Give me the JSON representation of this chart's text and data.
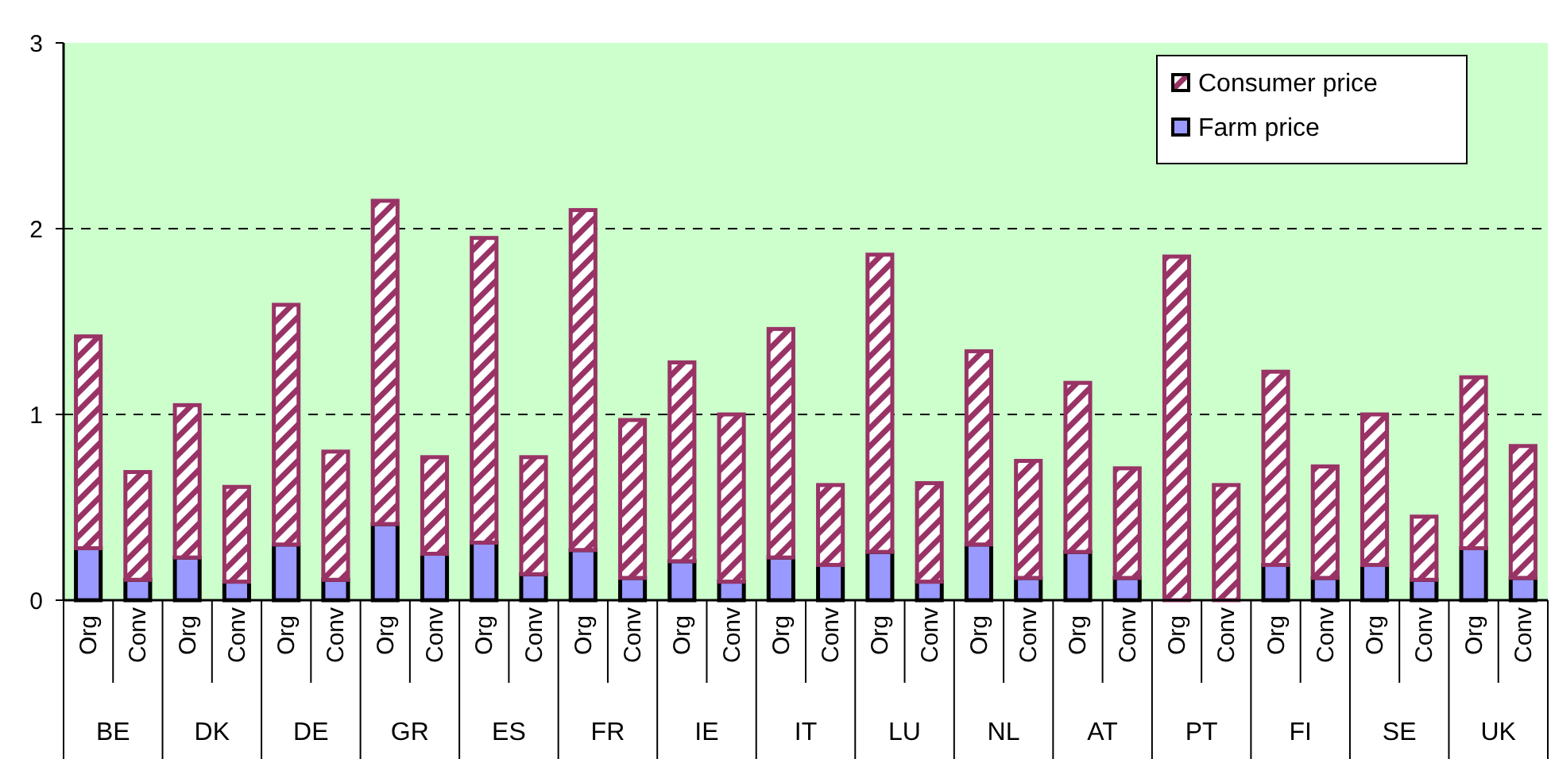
{
  "chart_data": {
    "type": "bar",
    "stacked": true,
    "categories": [
      "Org",
      "Conv",
      "Org",
      "Conv",
      "Org",
      "Conv",
      "Org",
      "Conv",
      "Org",
      "Conv",
      "Org",
      "Conv",
      "Org",
      "Conv",
      "Org",
      "Conv",
      "Org",
      "Conv",
      "Org",
      "Conv",
      "Org",
      "Conv",
      "Org",
      "Conv",
      "Org",
      "Conv",
      "Org",
      "Conv",
      "Org",
      "Conv"
    ],
    "annotations": [
      "BE",
      "DK",
      "DE",
      "GR",
      "ES",
      "FR",
      "IE",
      "IT",
      "LU",
      "NL",
      "AT",
      "PT",
      "FI",
      "SE",
      "UK"
    ],
    "series": [
      {
        "name": "Farm price",
        "color": "#9999ff",
        "values": [
          0.28,
          0.11,
          0.23,
          0.1,
          0.3,
          0.11,
          0.41,
          0.25,
          0.31,
          0.14,
          0.27,
          0.12,
          0.21,
          0.1,
          0.23,
          0.19,
          0.26,
          0.1,
          0.3,
          0.12,
          0.26,
          0.12,
          0,
          0,
          0.19,
          0.12,
          0.19,
          0.11,
          0.28,
          0.12
        ]
      },
      {
        "name": "Consumer price",
        "color": "#993366",
        "values": [
          1.14,
          0.58,
          0.82,
          0.51,
          1.29,
          0.69,
          1.74,
          0.52,
          1.64,
          0.63,
          1.83,
          0.85,
          1.07,
          0.9,
          1.23,
          0.43,
          1.6,
          0.53,
          1.04,
          0.63,
          0.91,
          0.59,
          1.85,
          0.62,
          1.04,
          0.6,
          0.81,
          0.34,
          0.92,
          0.71
        ]
      }
    ],
    "ylim": [
      0,
      3
    ],
    "yticks": [
      0,
      1,
      2,
      3
    ],
    "grid": "y",
    "legend": "top right"
  }
}
